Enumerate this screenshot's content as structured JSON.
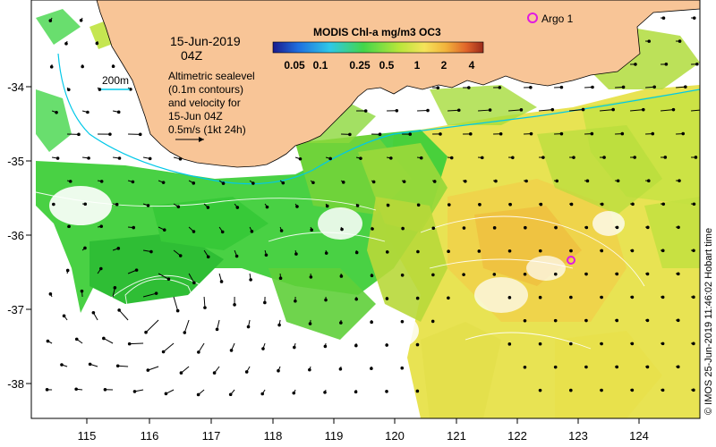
{
  "date": "15-Jun-2019",
  "time": "04Z",
  "colorbar": {
    "title": "MODIS Chl-a mg/m3 OC3",
    "tick_labels": [
      "0.05",
      "0.1",
      "0.25",
      "0.5",
      "1",
      "2",
      "4"
    ],
    "colors": [
      "#1a1a8c",
      "#1f6fe0",
      "#2ec8e8",
      "#43d64a",
      "#b8e63a",
      "#f5e35a",
      "#f2b43c",
      "#e0642a",
      "#9a2a1a"
    ]
  },
  "legend": {
    "isobath_label": "200m",
    "isobath_color": "#00c8e8",
    "description_lines": [
      "Altimetric sealevel",
      "(0.1m contours)",
      "and velocity for",
      "15-Jun 04Z",
      "0.5m/s (1kt 24h)"
    ]
  },
  "float": {
    "label": "Argo 1",
    "color": "#e01ae0",
    "lon": 122.4,
    "lat": -33.3
  },
  "float_unlabeled": {
    "lon": 123.0,
    "lat": -36.35
  },
  "axes": {
    "x_ticks": [
      "115",
      "116",
      "117",
      "118",
      "119",
      "120",
      "121",
      "122",
      "123",
      "124"
    ],
    "y_ticks": [
      "-34",
      "-35",
      "-36",
      "-37",
      "-38"
    ],
    "xlim": [
      114.1,
      125.0
    ],
    "ylim": [
      -38.5,
      -33.2
    ]
  },
  "credit": "© IMOS 25-Jun-2019 11:46:02 Hobart time",
  "colors": {
    "land": "#f8c597",
    "coast": "#000000",
    "arrow": "#000000"
  }
}
